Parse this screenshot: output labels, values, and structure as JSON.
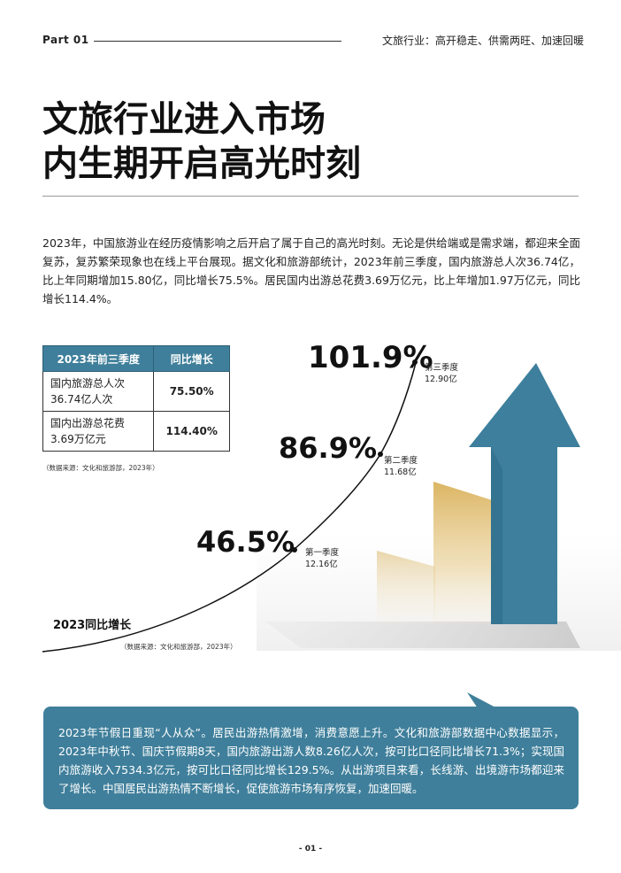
{
  "header": {
    "part": "Part 01",
    "subtitle": "文旅行业：高开稳走、供需两旺、加速回暖"
  },
  "title": {
    "line1": "文旅行业进入市场",
    "line2": "内生期开启高光时刻"
  },
  "intro": "2023年，中国旅游业在经历疫情影响之后开启了属于自己的高光时刻。无论是供给端或是需求端，都迎来全面复苏，复苏繁荣现象也在线上平台展现。据文化和旅游部统计，2023年前三季度，国内旅游总人次36.74亿，比上年同期增加15.80亿，同比增长75.5%。居民国内出游总花费3.69万亿元，比上年增加1.97万亿元，同比增长114.4%。",
  "table": {
    "headers": [
      "2023年前三季度",
      "同比增长"
    ],
    "rows": [
      {
        "label_line1": "国内旅游总人次",
        "label_line2": "36.74亿人次",
        "value": "75.50%"
      },
      {
        "label_line1": "国内出游总花费",
        "label_line2": "3.69万亿元",
        "value": "114.40%"
      }
    ],
    "source": "（数据来源：文化和旅游部，2023年）"
  },
  "chart_data": {
    "type": "line",
    "title": "2023同比增长",
    "source": "（数据来源：文化和旅游部，2023年）",
    "points": [
      {
        "pct": "46.5%",
        "value": 46.5,
        "quarter": "第一季度",
        "amount": "12.16亿"
      },
      {
        "pct": "86.9%",
        "value": 86.9,
        "quarter": "第二季度",
        "amount": "11.68亿"
      },
      {
        "pct": "101.9%",
        "value": 101.9,
        "quarter": "第三季度",
        "amount": "12.90亿"
      }
    ]
  },
  "colors": {
    "accent_blue": "#3f7f9b",
    "arrow_blue": "#3d7f9c",
    "gold": "#d9b15a"
  },
  "callout": "2023年节假日重现“人从众”。居民出游热情激增，消费意愿上升。文化和旅游部数据中心数据显示，2023年中秋节、国庆节假期8天，国内旅游出游人数8.26亿人次，按可比口径同比增长71.3%；实现国内旅游收入7534.3亿元，按可比口径同比增长129.5%。从出游项目来看，长线游、出境游市场都迎来了增长。中国居民出游热情不断增长，促使旅游市场有序恢复，加速回暖。",
  "page_number": "- 01 -"
}
